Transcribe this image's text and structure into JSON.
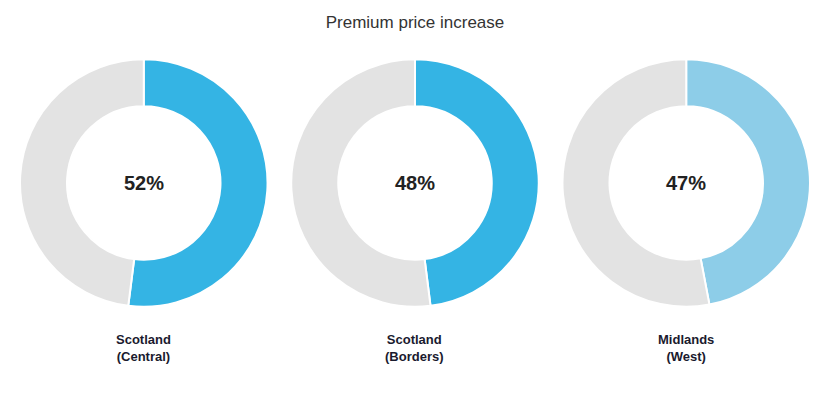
{
  "chart_data": {
    "type": "pie",
    "title": "Premium price increase",
    "series": [
      {
        "name": "Scotland\n(Central)",
        "values": [
          52,
          48
        ],
        "colors": [
          "#34b4e4",
          "#e3e3e3"
        ],
        "value_labels": [
          "52%",
          null
        ]
      },
      {
        "name": "Scotland\n(Borders)",
        "values": [
          48,
          52
        ],
        "colors": [
          "#34b4e4",
          "#e3e3e3"
        ],
        "value_labels": [
          "48%",
          null
        ]
      },
      {
        "name": "Midlands\n(West)",
        "values": [
          47,
          53
        ],
        "colors": [
          "#8dcde8",
          "#e3e3e3"
        ],
        "value_labels": [
          "47%",
          null
        ]
      }
    ],
    "data_labels": true
  }
}
